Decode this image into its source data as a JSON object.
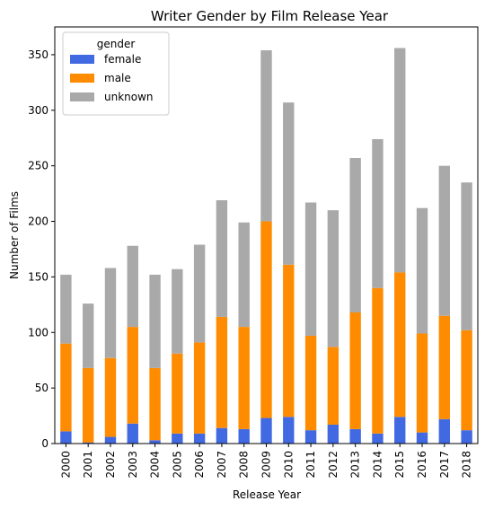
{
  "chart_data": {
    "type": "bar",
    "stacked": true,
    "title": "Writer Gender by Film Release Year",
    "xlabel": "Release Year",
    "ylabel": "Number of Films",
    "ylim": [
      0,
      375
    ],
    "yticks": [
      0,
      50,
      100,
      150,
      200,
      250,
      300,
      350
    ],
    "grid": false,
    "legend": {
      "title": "gender",
      "placement": "top-left"
    },
    "categories": [
      "2000",
      "2001",
      "2002",
      "2003",
      "2004",
      "2005",
      "2006",
      "2007",
      "2008",
      "2009",
      "2010",
      "2011",
      "2012",
      "2013",
      "2014",
      "2015",
      "2016",
      "2017",
      "2018"
    ],
    "series": [
      {
        "name": "female",
        "color": "#4169e1",
        "values": [
          11,
          1,
          6,
          18,
          3,
          9,
          9,
          14,
          13,
          23,
          24,
          12,
          17,
          13,
          9,
          24,
          10,
          22,
          12
        ]
      },
      {
        "name": "male",
        "color": "#ff8c00",
        "values": [
          79,
          67,
          71,
          87,
          65,
          72,
          82,
          100,
          92,
          177,
          137,
          85,
          70,
          105,
          131,
          130,
          89,
          93,
          90
        ]
      },
      {
        "name": "unknown",
        "color": "#a9a9a9",
        "values": [
          62,
          58,
          81,
          73,
          84,
          76,
          88,
          105,
          94,
          154,
          146,
          120,
          123,
          139,
          134,
          202,
          113,
          135,
          133
        ]
      }
    ]
  }
}
